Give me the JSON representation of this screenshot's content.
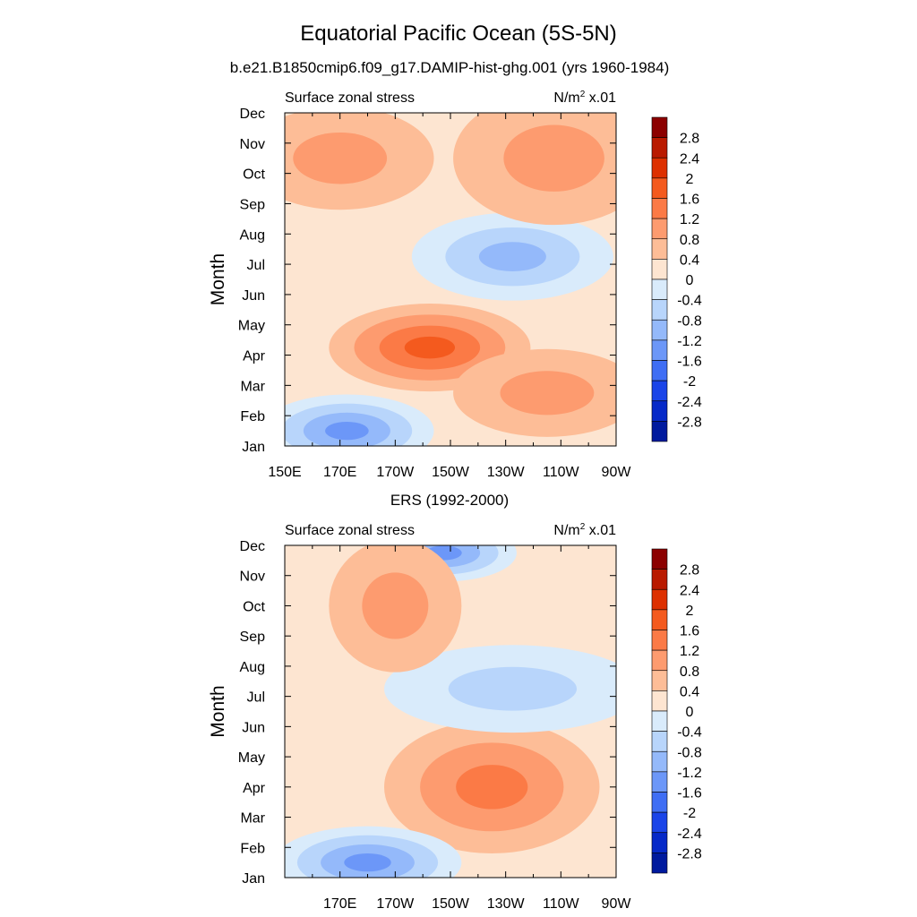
{
  "figure": {
    "title": "Equatorial Pacific Ocean (5S-5N)",
    "subtitle_top": "b.e21.B1850cmip6.f09_g17.DAMIP-hist-ghg.001 (yrs 1960-1984)",
    "subtitle_bottom": "ERS (1992-2000)"
  },
  "chart_data": [
    {
      "type": "heatmap",
      "panel": "model",
      "left_label": "Surface zonal stress",
      "right_label": "N/m",
      "right_label_sup": "2",
      "right_label_suffix": " x.01",
      "ylabel": "Month",
      "x_ticks": [
        "150E",
        "170E",
        "170W",
        "150W",
        "130W",
        "110W",
        "90W"
      ],
      "y_ticks": [
        "Jan",
        "Feb",
        "Mar",
        "Apr",
        "May",
        "Jun",
        "Jul",
        "Aug",
        "Sep",
        "Oct",
        "Nov",
        "Dec"
      ],
      "xlim": [
        150,
        270
      ],
      "ylim": [
        1,
        12
      ],
      "contour_levels": [
        -2.8,
        -2.4,
        -2,
        -1.6,
        -1.2,
        -0.8,
        -0.4,
        0,
        0.4,
        0.8,
        1.2,
        1.6,
        2,
        2.4,
        2.8
      ],
      "features": [
        {
          "kind": "negative",
          "min": -1.6,
          "lon": [
            235,
            250
          ],
          "month": [
            7,
            7.5
          ]
        },
        {
          "kind": "negative",
          "min": -1.2,
          "lon": [
            210,
            255
          ],
          "month": [
            6.5,
            8
          ]
        },
        {
          "kind": "positive",
          "max": 1.6,
          "lon": [
            180,
            225
          ],
          "month": [
            3.5,
            5
          ]
        },
        {
          "kind": "positive",
          "max": 0.8,
          "lon": [
            225,
            265
          ],
          "month": [
            2,
            3.5
          ]
        },
        {
          "kind": "negative",
          "min": -1.6,
          "lon": [
            155,
            190
          ],
          "month": [
            1,
            2
          ]
        },
        {
          "kind": "positive",
          "max": 0.8,
          "lon": [
            150,
            190
          ],
          "month": [
            9.5,
            11.5
          ]
        },
        {
          "kind": "positive",
          "max": 0.8,
          "lon": [
            225,
            270
          ],
          "month": [
            9,
            12
          ]
        }
      ]
    },
    {
      "type": "heatmap",
      "panel": "ERS",
      "left_label": "Surface zonal stress",
      "right_label": "N/m",
      "right_label_sup": "2",
      "right_label_suffix": " x.01",
      "ylabel": "Month",
      "x_ticks": [
        "170E",
        "170W",
        "150W",
        "130W",
        "110W",
        "90W"
      ],
      "y_ticks": [
        "Jan",
        "Feb",
        "Mar",
        "Apr",
        "May",
        "Jun",
        "Jul",
        "Aug",
        "Sep",
        "Oct",
        "Nov",
        "Dec"
      ],
      "xlim": [
        150,
        270
      ],
      "ylim": [
        1,
        12
      ],
      "contour_levels": [
        -2.8,
        -2.4,
        -2,
        -1.6,
        -1.2,
        -0.8,
        -0.4,
        0,
        0.4,
        0.8,
        1.2,
        1.6,
        2,
        2.4,
        2.8
      ],
      "features": [
        {
          "kind": "positive",
          "max": 2.0,
          "lon": [
            210,
            230
          ],
          "month": [
            3,
            4.5
          ]
        },
        {
          "kind": "positive",
          "max": 1.2,
          "lon": [
            200,
            250
          ],
          "month": [
            2.5,
            5.5
          ]
        },
        {
          "kind": "negative",
          "min": -1.6,
          "lon": [
            215,
            250
          ],
          "month": [
            7,
            7.5
          ]
        },
        {
          "kind": "negative",
          "min": -0.8,
          "lon": [
            200,
            265
          ],
          "month": [
            6.5,
            8
          ]
        },
        {
          "kind": "negative",
          "min": -1.6,
          "lon": [
            160,
            200
          ],
          "month": [
            1,
            2
          ]
        },
        {
          "kind": "negative",
          "min": -1.6,
          "lon": [
            195,
            220
          ],
          "month": [
            11.5,
            12
          ]
        },
        {
          "kind": "positive",
          "max": 0.8,
          "lon": [
            180,
            200
          ],
          "month": [
            8.5,
            11.5
          ]
        }
      ]
    }
  ],
  "colorbar": {
    "labels": [
      "2.8",
      "2.4",
      "2",
      "1.6",
      "1.2",
      "0.8",
      "0.4",
      "0",
      "-0.4",
      "-0.8",
      "-1.2",
      "-1.6",
      "-2",
      "-2.4",
      "-2.8"
    ],
    "colors": [
      "#8c0000",
      "#b91a00",
      "#dd3000",
      "#f45a1e",
      "#fb7a46",
      "#fd9b6f",
      "#fdbd97",
      "#fde5d1",
      "#d9ebfb",
      "#b8d5fb",
      "#94b9fa",
      "#6c97f8",
      "#3f6ef4",
      "#1a44e8",
      "#0629c8",
      "#001a9e"
    ]
  }
}
